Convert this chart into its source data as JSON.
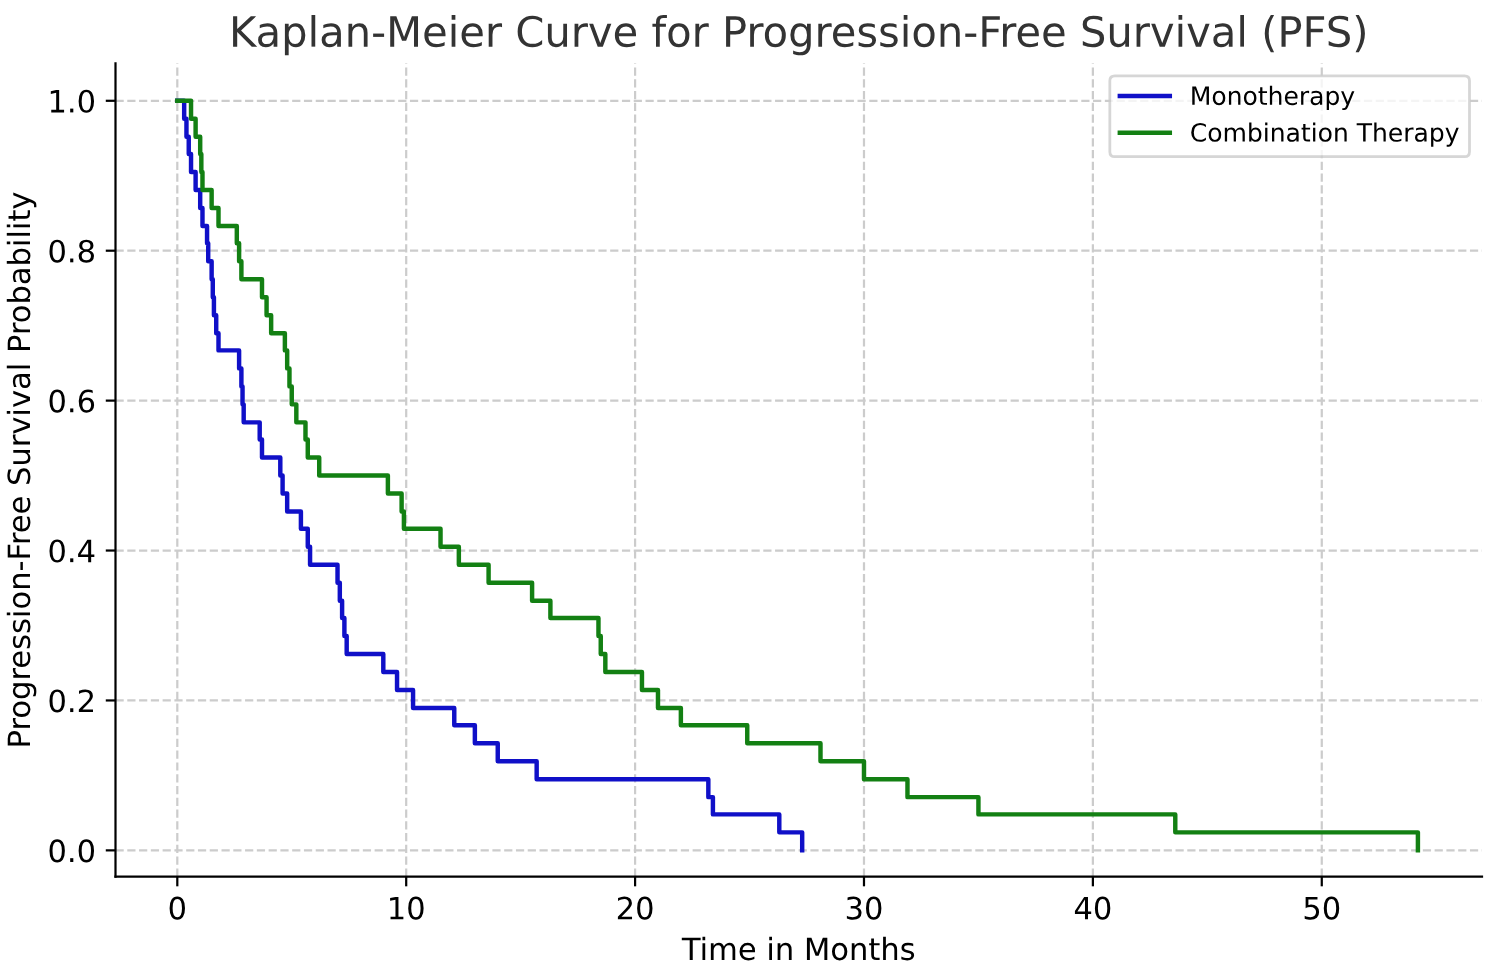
{
  "chart_data": {
    "type": "step",
    "title": "Kaplan-Meier Curve for Progression-Free Survival (PFS)",
    "xlabel": "Time in Months",
    "ylabel": "Progression-Free Survival Probability",
    "series": [
      {
        "name": "Monotherapy",
        "color": "#1010c8",
        "x": [
          0,
          0.3,
          0.4,
          0.5,
          0.6,
          0.8,
          1.0,
          1.1,
          1.3,
          1.35,
          1.5,
          1.55,
          1.6,
          1.7,
          1.8,
          2.7,
          2.8,
          2.85,
          2.9,
          3.6,
          3.7,
          4.5,
          4.6,
          4.8,
          5.4,
          5.7,
          5.8,
          7.0,
          7.1,
          7.2,
          7.3,
          7.4,
          9.0,
          9.6,
          10.3,
          12.1,
          13.0,
          14.0,
          15.7,
          23.2,
          23.4,
          26.3,
          27.3
        ],
        "values": [
          1.0,
          0.976,
          0.952,
          0.929,
          0.905,
          0.881,
          0.857,
          0.833,
          0.81,
          0.786,
          0.762,
          0.738,
          0.714,
          0.69,
          0.667,
          0.643,
          0.619,
          0.595,
          0.571,
          0.548,
          0.524,
          0.5,
          0.476,
          0.452,
          0.429,
          0.405,
          0.381,
          0.357,
          0.333,
          0.31,
          0.286,
          0.262,
          0.238,
          0.214,
          0.19,
          0.167,
          0.143,
          0.119,
          0.095,
          0.071,
          0.048,
          0.024,
          0.0
        ]
      },
      {
        "name": "Combination Therapy",
        "color": "#138013",
        "x": [
          0,
          0.6,
          0.8,
          1.0,
          1.05,
          1.1,
          1.5,
          1.8,
          2.6,
          2.7,
          2.8,
          3.7,
          3.9,
          4.1,
          4.7,
          4.8,
          4.9,
          5.0,
          5.2,
          5.6,
          5.7,
          6.2,
          9.2,
          9.8,
          9.9,
          11.5,
          12.3,
          13.6,
          15.5,
          16.3,
          18.4,
          18.5,
          18.7,
          20.3,
          21.0,
          22.0,
          24.9,
          28.1,
          30.0,
          31.9,
          35.0,
          43.6,
          54.2
        ],
        "values": [
          1.0,
          0.976,
          0.952,
          0.929,
          0.905,
          0.881,
          0.857,
          0.833,
          0.81,
          0.786,
          0.762,
          0.738,
          0.714,
          0.69,
          0.667,
          0.643,
          0.619,
          0.595,
          0.571,
          0.548,
          0.524,
          0.5,
          0.476,
          0.452,
          0.429,
          0.405,
          0.381,
          0.357,
          0.333,
          0.31,
          0.286,
          0.262,
          0.238,
          0.214,
          0.19,
          0.167,
          0.143,
          0.119,
          0.095,
          0.071,
          0.048,
          0.024,
          0.0
        ]
      }
    ],
    "xlim": [
      -2.7,
      57
    ],
    "xticks": [
      0,
      10,
      20,
      30,
      40,
      50
    ],
    "ylim": [
      -0.035,
      1.05
    ],
    "yticks": [
      {
        "value": 0,
        "label": "0.0"
      },
      {
        "value": 0.2,
        "label": "0.2"
      },
      {
        "value": 0.4,
        "label": "0.4"
      },
      {
        "value": 0.6,
        "label": "0.6"
      },
      {
        "value": 0.8,
        "label": "0.8"
      },
      {
        "value": 1.0,
        "label": "1.0"
      }
    ],
    "grid": true,
    "legend": "top right",
    "line_style": "solid",
    "marker": "none"
  }
}
